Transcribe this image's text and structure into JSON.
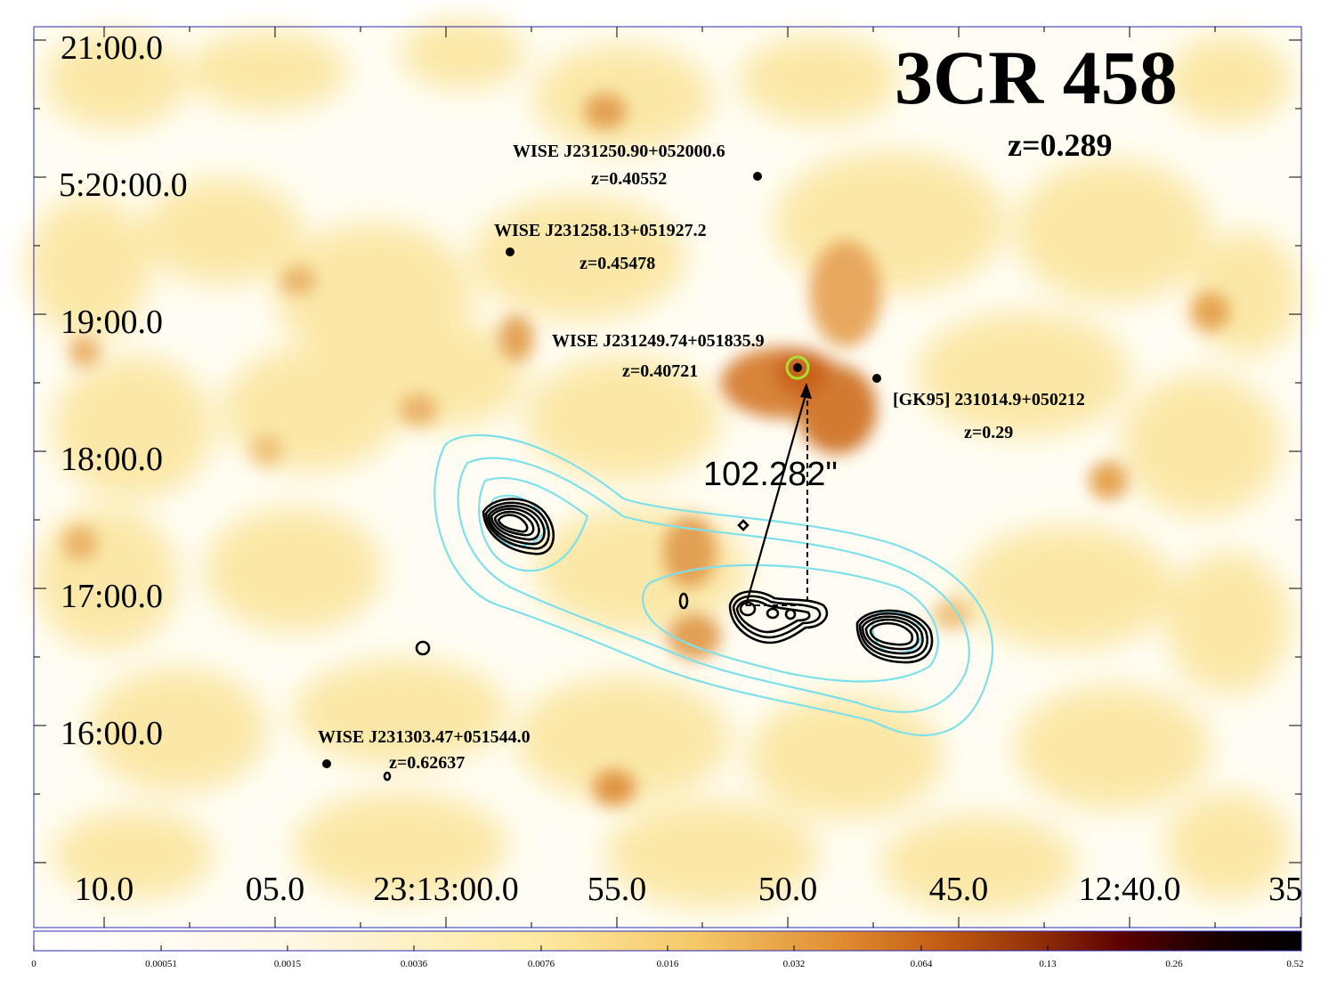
{
  "figure": {
    "title": "3CR 458",
    "redshift": "z=0.289",
    "measurement": "102.282\""
  },
  "axes": {
    "dec_ticks": [
      "21:00.0",
      "5:20:00.0",
      "19:00.0",
      "18:00.0",
      "17:00.0",
      "16:00.0"
    ],
    "ra_ticks": [
      "10.0",
      "05.0",
      "23:13:00.0",
      "55.0",
      "50.0",
      "45.0",
      "12:40.0",
      "35"
    ]
  },
  "sources": [
    {
      "name": "WISE J231250.90+052000.6",
      "z": "z=0.40552"
    },
    {
      "name": "WISE J231258.13+051927.2",
      "z": "z=0.45478"
    },
    {
      "name": "WISE J231249.74+051835.9",
      "z": "z=0.40721"
    },
    {
      "name": "[GK95] 231014.9+050212",
      "z": "z=0.29"
    },
    {
      "name": "WISE J231303.47+051544.0",
      "z": "z=0.62637"
    }
  ],
  "colorbar": {
    "labels": [
      "0",
      "0.00051",
      "0.0015",
      "0.0036",
      "0.0076",
      "0.016",
      "0.032",
      "0.064",
      "0.13",
      "0.26",
      "0.52"
    ]
  },
  "colors": {
    "radio_contour_cyan": "#7fe0ea",
    "radio_contour_black": "#000000",
    "host_marker": "#a6e22e",
    "frame": "#2b2bb0",
    "emission_peak": "#c9621a"
  }
}
